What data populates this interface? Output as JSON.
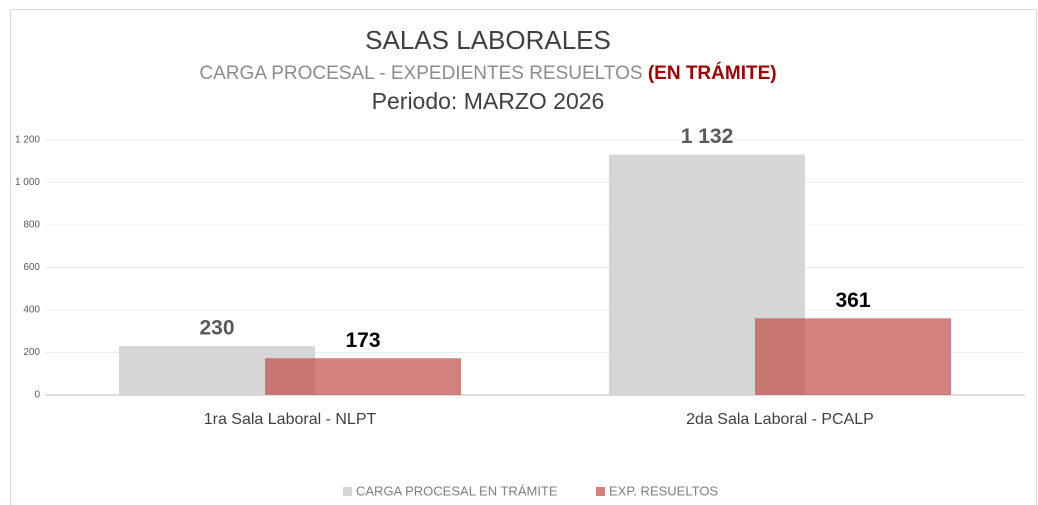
{
  "chart_data": {
    "type": "bar",
    "title": "SALAS LABORALES",
    "subtitle": "CARGA PROCESAL - EXPEDIENTES RESUELTOS",
    "subtitle_note": "(EN TRÁMITE)",
    "period": "Periodo: MARZO 2026",
    "categories": [
      "1ra Sala Laboral - NLPT",
      "2da Sala Laboral - PCALP"
    ],
    "series": [
      {
        "name": "CARGA PROCESAL EN TRÁMITE",
        "color": "#d6d6d6",
        "values": [
          230,
          1132
        ],
        "value_labels": [
          "230",
          "1 132"
        ]
      },
      {
        "name": "EXP. RESUELTOS",
        "color": "#c0504d",
        "values": [
          173,
          361
        ]
      }
    ],
    "ylim": [
      0,
      1200
    ],
    "yticks": [
      0,
      200,
      400,
      600,
      800,
      {
        "value": 1000,
        "label": "1 000"
      },
      {
        "value": 1200,
        "label": "1 200"
      }
    ],
    "grid": true,
    "legend": "bottom"
  }
}
